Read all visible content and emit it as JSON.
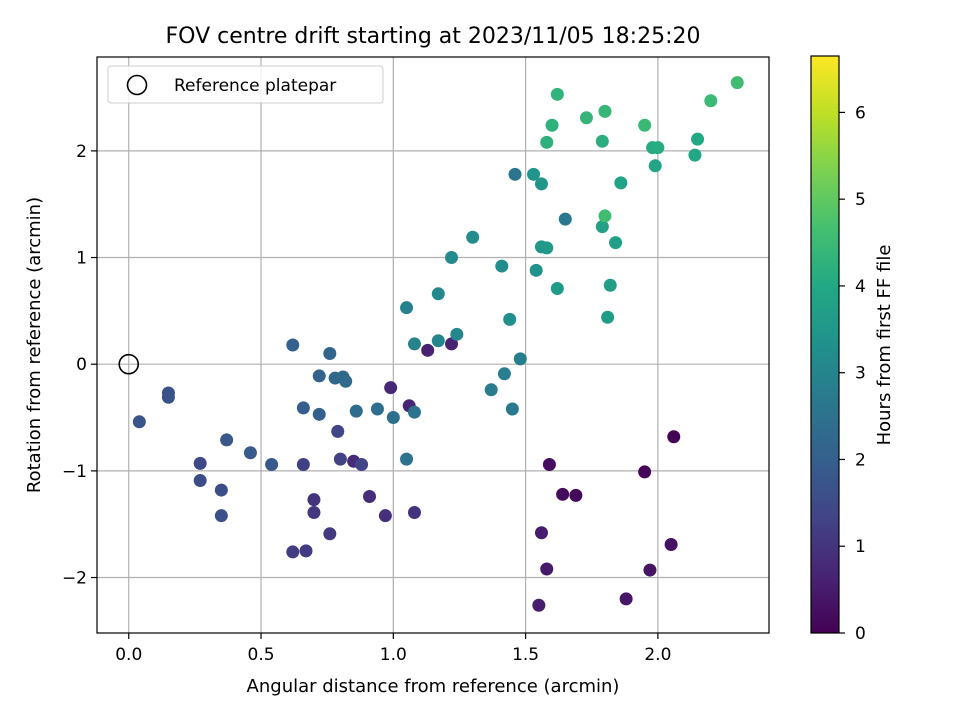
{
  "chart_data": {
    "type": "scatter",
    "title": "FOV centre drift starting at 2023/11/05 18:25:20",
    "xlabel": "Angular distance from reference (arcmin)",
    "ylabel": "Rotation from reference (arcmin)",
    "xlim": [
      -0.12,
      2.42
    ],
    "ylim": [
      -2.52,
      2.88
    ],
    "xticks": [
      0.0,
      0.5,
      1.0,
      1.5,
      2.0
    ],
    "xtick_labels": [
      "0.0",
      "0.5",
      "1.0",
      "1.5",
      "2.0"
    ],
    "yticks": [
      -2,
      -1,
      0,
      1,
      2
    ],
    "ytick_labels": [
      "−2",
      "−1",
      "0",
      "1",
      "2"
    ],
    "grid": true,
    "legend": {
      "position": "upper-left",
      "entries": [
        {
          "label": "Reference platepar",
          "marker": "open-circle",
          "point": [
            0.0,
            0.0
          ]
        }
      ]
    },
    "colorbar": {
      "label": "Hours from first FF file",
      "colormap": "viridis",
      "range": [
        0,
        6.65
      ],
      "ticks": [
        0,
        1,
        2,
        3,
        4,
        5,
        6
      ],
      "tick_labels": [
        "0",
        "1",
        "2",
        "3",
        "4",
        "5",
        "6"
      ],
      "colors": [
        "#440154",
        "#482475",
        "#414487",
        "#355f8d",
        "#2a788e",
        "#21918c",
        "#22a884",
        "#44bf70",
        "#7ad151",
        "#bddf26",
        "#fde725"
      ]
    },
    "points": [
      {
        "x": 2.06,
        "y": -0.68,
        "h": 0.05
      },
      {
        "x": 1.95,
        "y": -1.01,
        "h": 0.1
      },
      {
        "x": 1.69,
        "y": -1.23,
        "h": 0.15
      },
      {
        "x": 1.64,
        "y": -1.22,
        "h": 0.2
      },
      {
        "x": 1.59,
        "y": -0.94,
        "h": 0.25
      },
      {
        "x": 2.05,
        "y": -1.69,
        "h": 0.3
      },
      {
        "x": 1.97,
        "y": -1.93,
        "h": 0.35
      },
      {
        "x": 1.88,
        "y": -2.2,
        "h": 0.4
      },
      {
        "x": 1.58,
        "y": -1.92,
        "h": 0.45
      },
      {
        "x": 1.56,
        "y": -1.58,
        "h": 0.5
      },
      {
        "x": 1.55,
        "y": -2.26,
        "h": 0.55
      },
      {
        "x": 1.13,
        "y": 0.13,
        "h": 0.6
      },
      {
        "x": 1.22,
        "y": 0.19,
        "h": 0.65
      },
      {
        "x": 1.06,
        "y": -0.39,
        "h": 0.7
      },
      {
        "x": 0.99,
        "y": -0.22,
        "h": 0.75
      },
      {
        "x": 0.85,
        "y": -0.91,
        "h": 0.8
      },
      {
        "x": 0.91,
        "y": -1.24,
        "h": 0.85
      },
      {
        "x": 0.97,
        "y": -1.42,
        "h": 0.9
      },
      {
        "x": 1.08,
        "y": -1.39,
        "h": 0.95
      },
      {
        "x": 0.7,
        "y": -1.27,
        "h": 1.0
      },
      {
        "x": 0.7,
        "y": -1.39,
        "h": 1.05
      },
      {
        "x": 0.76,
        "y": -1.59,
        "h": 1.1
      },
      {
        "x": 0.67,
        "y": -1.75,
        "h": 1.15
      },
      {
        "x": 0.62,
        "y": -1.76,
        "h": 1.2
      },
      {
        "x": 0.66,
        "y": -0.94,
        "h": 1.25
      },
      {
        "x": 0.8,
        "y": -0.89,
        "h": 1.3
      },
      {
        "x": 0.88,
        "y": -0.94,
        "h": 1.35
      },
      {
        "x": 0.79,
        "y": -0.63,
        "h": 1.4
      },
      {
        "x": 0.27,
        "y": -0.93,
        "h": 1.45
      },
      {
        "x": 0.27,
        "y": -1.09,
        "h": 1.5
      },
      {
        "x": 0.35,
        "y": -1.18,
        "h": 1.55
      },
      {
        "x": 0.35,
        "y": -1.42,
        "h": 1.6
      },
      {
        "x": 0.15,
        "y": -0.27,
        "h": 1.65
      },
      {
        "x": 0.15,
        "y": -0.31,
        "h": 1.7
      },
      {
        "x": 0.04,
        "y": -0.54,
        "h": 1.75
      },
      {
        "x": 0.37,
        "y": -0.71,
        "h": 1.8
      },
      {
        "x": 0.54,
        "y": -0.94,
        "h": 1.85
      },
      {
        "x": 0.46,
        "y": -0.83,
        "h": 1.9
      },
      {
        "x": 0.66,
        "y": -0.41,
        "h": 1.95
      },
      {
        "x": 0.72,
        "y": -0.47,
        "h": 2.0
      },
      {
        "x": 0.62,
        "y": 0.18,
        "h": 2.05
      },
      {
        "x": 0.72,
        "y": -0.11,
        "h": 2.1
      },
      {
        "x": 0.76,
        "y": 0.1,
        "h": 2.15
      },
      {
        "x": 0.78,
        "y": -0.13,
        "h": 2.2
      },
      {
        "x": 0.81,
        "y": -0.12,
        "h": 2.25
      },
      {
        "x": 0.82,
        "y": -0.16,
        "h": 2.3
      },
      {
        "x": 0.86,
        "y": -0.44,
        "h": 2.35
      },
      {
        "x": 0.94,
        "y": -0.42,
        "h": 2.4
      },
      {
        "x": 1.0,
        "y": -0.5,
        "h": 2.45
      },
      {
        "x": 1.05,
        "y": -0.89,
        "h": 2.5
      },
      {
        "x": 1.08,
        "y": -0.45,
        "h": 2.55
      },
      {
        "x": 1.46,
        "y": 1.78,
        "h": 2.6
      },
      {
        "x": 1.65,
        "y": 1.36,
        "h": 2.65
      },
      {
        "x": 1.45,
        "y": -0.42,
        "h": 2.7
      },
      {
        "x": 1.37,
        "y": -0.24,
        "h": 2.75
      },
      {
        "x": 1.42,
        "y": -0.09,
        "h": 2.8
      },
      {
        "x": 1.48,
        "y": 0.05,
        "h": 2.85
      },
      {
        "x": 1.05,
        "y": 0.53,
        "h": 2.9
      },
      {
        "x": 1.08,
        "y": 0.19,
        "h": 2.95
      },
      {
        "x": 1.17,
        "y": 0.22,
        "h": 3.0
      },
      {
        "x": 1.24,
        "y": 0.28,
        "h": 3.05
      },
      {
        "x": 1.17,
        "y": 0.66,
        "h": 3.1
      },
      {
        "x": 1.22,
        "y": 1.0,
        "h": 3.15
      },
      {
        "x": 1.3,
        "y": 1.19,
        "h": 3.2
      },
      {
        "x": 1.41,
        "y": 0.92,
        "h": 3.25
      },
      {
        "x": 1.44,
        "y": 0.42,
        "h": 3.3
      },
      {
        "x": 1.54,
        "y": 0.88,
        "h": 3.35
      },
      {
        "x": 1.53,
        "y": 1.78,
        "h": 3.4
      },
      {
        "x": 1.56,
        "y": 1.69,
        "h": 3.45
      },
      {
        "x": 1.56,
        "y": 1.1,
        "h": 3.5
      },
      {
        "x": 1.58,
        "y": 1.09,
        "h": 3.55
      },
      {
        "x": 1.62,
        "y": 0.71,
        "h": 3.6
      },
      {
        "x": 1.81,
        "y": 0.44,
        "h": 3.65
      },
      {
        "x": 1.82,
        "y": 0.74,
        "h": 3.7
      },
      {
        "x": 1.84,
        "y": 1.14,
        "h": 3.75
      },
      {
        "x": 1.79,
        "y": 1.29,
        "h": 3.8
      },
      {
        "x": 1.86,
        "y": 1.7,
        "h": 3.85
      },
      {
        "x": 1.99,
        "y": 1.86,
        "h": 3.9
      },
      {
        "x": 2.14,
        "y": 1.96,
        "h": 3.95
      },
      {
        "x": 2.15,
        "y": 2.11,
        "h": 4.0
      },
      {
        "x": 1.98,
        "y": 2.03,
        "h": 4.05
      },
      {
        "x": 2.0,
        "y": 2.03,
        "h": 4.1
      },
      {
        "x": 1.79,
        "y": 2.09,
        "h": 4.15
      },
      {
        "x": 1.58,
        "y": 2.08,
        "h": 4.2
      },
      {
        "x": 1.6,
        "y": 2.24,
        "h": 4.25
      },
      {
        "x": 1.62,
        "y": 2.53,
        "h": 4.3
      },
      {
        "x": 1.73,
        "y": 2.31,
        "h": 4.35
      },
      {
        "x": 1.8,
        "y": 2.37,
        "h": 4.4
      },
      {
        "x": 1.95,
        "y": 2.24,
        "h": 4.45
      },
      {
        "x": 2.2,
        "y": 2.47,
        "h": 4.5
      },
      {
        "x": 2.3,
        "y": 2.64,
        "h": 4.55
      },
      {
        "x": 1.8,
        "y": 1.39,
        "h": 4.6
      }
    ]
  }
}
